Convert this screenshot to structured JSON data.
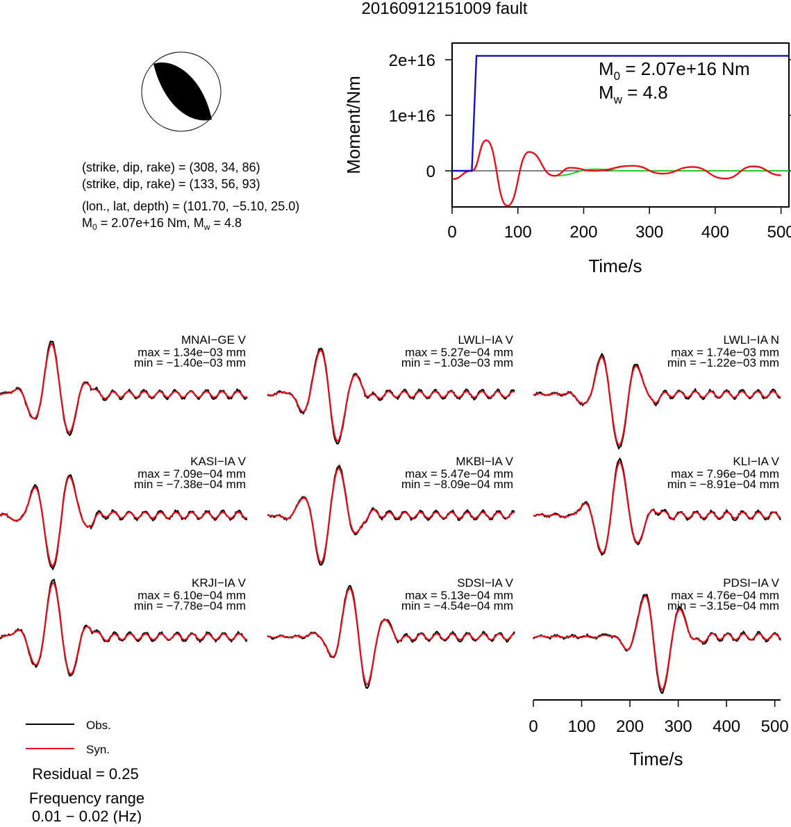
{
  "title": "20160912151009 fault",
  "source_info": {
    "line1": "(strike, dip, rake) = (308, 34, 86)",
    "line2": "(strike, dip, rake) = (133, 56, 93)",
    "line3": "(lon., lat, depth) = (101.70, −5.10, 25.0)",
    "m0_text": "M",
    "m0_sub": "0",
    "m0_rest": " = 2.07e+16 Nm, M",
    "mw_sub": "w",
    "mw_rest": " = 4.8"
  },
  "moment_panel": {
    "ylabel": "Moment/Nm",
    "xlabel": "Time/s",
    "m0_label": "M",
    "m0_sub": "0",
    "m0_value": " = 2.07e+16 Nm",
    "mw_label": "M",
    "mw_sub": "w",
    "mw_value": " = 4.8",
    "xticks": [
      "0",
      "100",
      "200",
      "300",
      "400",
      "500"
    ],
    "yticks": [
      "0",
      "1e+16",
      "2e+16"
    ]
  },
  "legend": {
    "obs": "Obs.",
    "syn": "Syn."
  },
  "residual": "Residual = 0.25",
  "frequency_label": "Frequency range",
  "frequency_value": "0.01 − 0.02 (Hz)",
  "time_axis": {
    "xlabel": "Time/s",
    "xticks": [
      "0",
      "100",
      "200",
      "300",
      "400",
      "500"
    ]
  },
  "colors": {
    "obs": "#000000",
    "syn": "#e8101a",
    "moment_rate": "#22cc22",
    "cumulative": "#1010cc",
    "axis": "#000000"
  },
  "chart_data": [
    {
      "type": "line",
      "title": "",
      "xlabel": "Time/s",
      "ylabel": "Moment/Nm",
      "xlim": [
        0,
        512
      ],
      "ylim": [
        -6500000000000000.0,
        2.3e+16
      ],
      "series": [],
      "step": {
        "t_start": 30,
        "t_end": 37,
        "final_value": 2.07e+16
      },
      "moment_rate": {
        "onset": 30,
        "peaks": [
          [
            52,
            5500000000000000.0
          ],
          [
            84,
            -6300000000000000.0
          ],
          [
            117,
            3400000000000000.0
          ],
          [
            155,
            -900000000000000.0
          ],
          [
            220,
            300000000000000.0
          ]
        ]
      },
      "fit_wiggles": [
        [
          180,
          550000000000000.0
        ],
        [
          215,
          0.0
        ],
        [
          275,
          900000000000000.0
        ],
        [
          320,
          -500000000000000.0
        ],
        [
          365,
          700000000000000.0
        ],
        [
          415,
          -1400000000000000.0
        ],
        [
          458,
          800000000000000.0
        ],
        [
          500,
          -800000000000000.0
        ]
      ]
    },
    {
      "type": "line",
      "stations": [
        {
          "name": "MNAI−GE V",
          "max": "max = 1.34e−03 mm",
          "min": "min = −1.40e−03 mm"
        },
        {
          "name": "LWLI−IA V",
          "max": "max = 5.27e−04 mm",
          "min": "min = −1.03e−03 mm"
        },
        {
          "name": "LWLI−IA N",
          "max": "max = 1.74e−03 mm",
          "min": "min = −1.22e−03 mm"
        },
        {
          "name": "KASI−IA V",
          "max": "max = 7.09e−04 mm",
          "min": "min = −7.38e−04 mm"
        },
        {
          "name": "MKBI−IA V",
          "max": "max = 5.47e−04 mm",
          "min": "min = −8.09e−04 mm"
        },
        {
          "name": "KLI−IA V",
          "max": "max = 7.96e−04 mm",
          "min": "min = −8.91e−04 mm"
        },
        {
          "name": "KRJI−IA V",
          "max": "max = 6.10e−04 mm",
          "min": "min = −7.78e−04 mm"
        },
        {
          "name": "SDSI−IA V",
          "max": "max = 5.13e−04 mm",
          "min": "min = −4.54e−04 mm"
        },
        {
          "name": "PDSI−IA V",
          "max": "max = 4.76e−04 mm",
          "min": "min = −3.15e−04 mm"
        }
      ]
    }
  ]
}
